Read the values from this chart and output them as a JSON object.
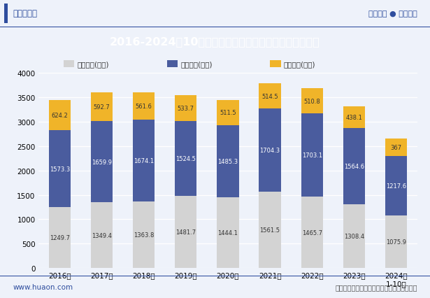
{
  "years": [
    "2016年",
    "2017年",
    "2018年",
    "2019年",
    "2020年",
    "2021年",
    "2022年",
    "2023年",
    "2024年\n1-10月"
  ],
  "sales": [
    1249.7,
    1349.4,
    1363.8,
    1481.7,
    1444.1,
    1561.5,
    1465.7,
    1308.4,
    1075.9
  ],
  "mgmt": [
    1573.3,
    1659.9,
    1674.1,
    1524.5,
    1485.3,
    1704.3,
    1703.1,
    1564.6,
    1217.6
  ],
  "finance": [
    624.2,
    592.7,
    561.6,
    533.7,
    511.5,
    514.5,
    510.8,
    438.1,
    367.0
  ],
  "finance_labels": [
    "624.2",
    "592.7",
    "561.6",
    "533.7",
    "511.5",
    "514.5",
    "510.8",
    "438.1",
    "367"
  ],
  "sales_color": "#d3d3d3",
  "mgmt_color": "#4a5c9e",
  "finance_color": "#f0b429",
  "title": "2016-2024年10月四川省工业企业销售、管理及财务费用",
  "title_bg_color": "#2e4d9e",
  "title_text_color": "#ffffff",
  "legend_labels": [
    "销售费用(亿元)",
    "管理费用(亿元)",
    "财务费用(亿元)"
  ],
  "ylim": [
    0,
    4000
  ],
  "yticks": [
    0,
    500,
    1000,
    1500,
    2000,
    2500,
    3000,
    3500,
    4000
  ],
  "bg_color": "#eef2fa",
  "footer_text": "数据来源：国家统计局；华经产业研究院整理",
  "left_footer": "www.huaon.com",
  "top_left": "华经情报网",
  "top_right": "专业严谨 ● 客观科学",
  "border_color": "#2e4d9e"
}
